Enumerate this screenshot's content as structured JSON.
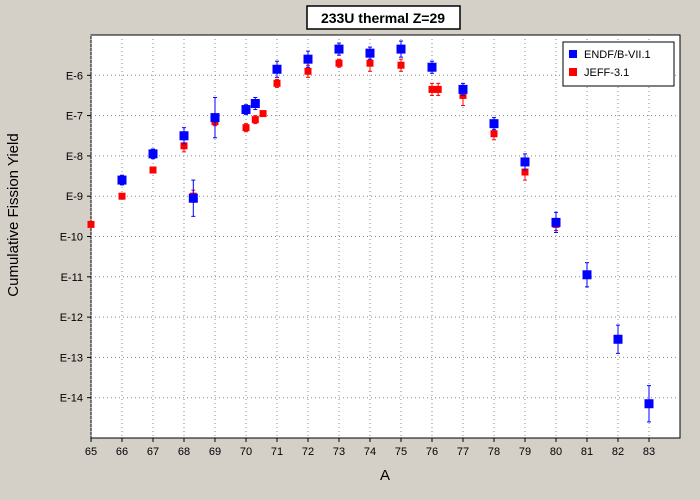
{
  "chart_data": {
    "type": "scatter",
    "title": "233U thermal Z=29",
    "xlabel": "A",
    "ylabel": "Cumulative Fission Yield",
    "xlim": [
      65,
      84
    ],
    "ylim": [
      -15,
      -5
    ],
    "y_scale": "log",
    "grid": true,
    "legend_position": "top-right",
    "x_ticks": [
      65,
      66,
      67,
      68,
      69,
      70,
      71,
      72,
      73,
      74,
      75,
      76,
      77,
      78,
      79,
      80,
      81,
      82,
      83
    ],
    "y_ticks": [
      {
        "value": -6,
        "label": "E-6"
      },
      {
        "value": -7,
        "label": "E-7"
      },
      {
        "value": -8,
        "label": "E-8"
      },
      {
        "value": -9,
        "label": "E-9"
      },
      {
        "value": -10,
        "label": "E-10"
      },
      {
        "value": -11,
        "label": "E-11"
      },
      {
        "value": -12,
        "label": "E-12"
      },
      {
        "value": -13,
        "label": "E-13"
      },
      {
        "value": -14,
        "label": "E-14"
      }
    ],
    "series": [
      {
        "name": "ENDF/B-VII.1",
        "color": "#0000ff",
        "marker": "square",
        "points": [
          {
            "x": 66,
            "y": -8.6,
            "err": 0.12
          },
          {
            "x": 67,
            "y": -7.95,
            "err": 0.12
          },
          {
            "x": 68,
            "y": -7.5,
            "err": 0.2
          },
          {
            "x": 68.3,
            "y": -9.05,
            "err": 0.45
          },
          {
            "x": 69,
            "y": -7.05,
            "err": 0.5
          },
          {
            "x": 70,
            "y": -6.85,
            "err": 0.12
          },
          {
            "x": 70.3,
            "y": -6.7,
            "err": 0.15
          },
          {
            "x": 71,
            "y": -5.85,
            "err": 0.2
          },
          {
            "x": 72,
            "y": -5.6,
            "err": 0.2
          },
          {
            "x": 73,
            "y": -5.35,
            "err": 0.15
          },
          {
            "x": 74,
            "y": -5.45,
            "err": 0.15
          },
          {
            "x": 75,
            "y": -5.35,
            "err": 0.2
          },
          {
            "x": 76,
            "y": -5.8,
            "err": 0.15
          },
          {
            "x": 77,
            "y": -6.35,
            "err": 0.15
          },
          {
            "x": 78,
            "y": -7.2,
            "err": 0.15
          },
          {
            "x": 79,
            "y": -8.15,
            "err": 0.2
          },
          {
            "x": 80,
            "y": -9.65,
            "err": 0.25
          },
          {
            "x": 81,
            "y": -10.95,
            "err": 0.3
          },
          {
            "x": 82,
            "y": -12.55,
            "err": 0.35
          },
          {
            "x": 83,
            "y": -14.15,
            "err": 0.45
          }
        ]
      },
      {
        "name": "JEFF-3.1",
        "color": "#ff0000",
        "marker": "square",
        "points": [
          {
            "x": 65,
            "y": -9.7,
            "err": 0
          },
          {
            "x": 66,
            "y": -9.0,
            "err": 0
          },
          {
            "x": 67,
            "y": -8.35,
            "err": 0
          },
          {
            "x": 68,
            "y": -7.75,
            "err": 0.15
          },
          {
            "x": 68.3,
            "y": -9.0,
            "err": 0.15
          },
          {
            "x": 69,
            "y": -7.15,
            "err": 0.1
          },
          {
            "x": 70,
            "y": -7.3,
            "err": 0.1
          },
          {
            "x": 70.3,
            "y": -7.1,
            "err": 0.1
          },
          {
            "x": 70.55,
            "y": -6.95,
            "err": 0
          },
          {
            "x": 71,
            "y": -6.2,
            "err": 0.1
          },
          {
            "x": 72,
            "y": -5.9,
            "err": 0.15
          },
          {
            "x": 73,
            "y": -5.7,
            "err": 0.1
          },
          {
            "x": 74,
            "y": -5.7,
            "err": 0.2
          },
          {
            "x": 75,
            "y": -5.75,
            "err": 0.15
          },
          {
            "x": 76,
            "y": -6.35,
            "err": 0.15
          },
          {
            "x": 76.2,
            "y": -6.35,
            "err": 0.15
          },
          {
            "x": 77,
            "y": -6.5,
            "err": 0.25
          },
          {
            "x": 78,
            "y": -7.45,
            "err": 0.15
          },
          {
            "x": 79,
            "y": -8.4,
            "err": 0.2
          },
          {
            "x": 80,
            "y": -9.7,
            "err": 0.15
          }
        ]
      }
    ]
  }
}
